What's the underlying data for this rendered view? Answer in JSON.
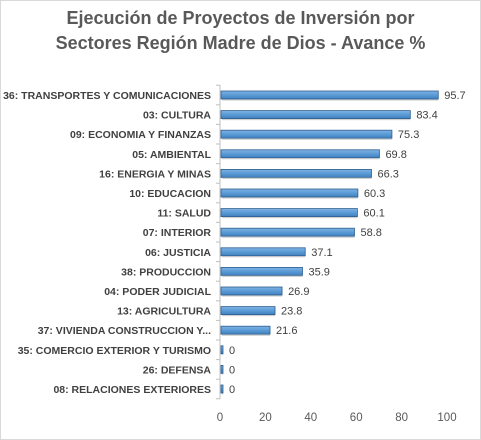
{
  "chart_data": {
    "type": "bar",
    "orientation": "horizontal",
    "title_lines": [
      "Ejecución de Proyectos de Inversión por",
      "Sectores Región Madre de Dios - Avance %"
    ],
    "categories": [
      "36: TRANSPORTES Y COMUNICACIONES",
      "03: CULTURA",
      "09: ECONOMIA Y FINANZAS",
      "05: AMBIENTAL",
      "16: ENERGIA Y MINAS",
      "10: EDUCACION",
      "11: SALUD",
      "07: INTERIOR",
      "06: JUSTICIA",
      "38: PRODUCCION",
      "04: PODER JUDICIAL",
      "13: AGRICULTURA",
      "37: VIVIENDA CONSTRUCCION Y...",
      "35: COMERCIO EXTERIOR Y TURISMO",
      "26: DEFENSA",
      "08: RELACIONES EXTERIORES"
    ],
    "values": [
      95.7,
      83.4,
      75.3,
      69.8,
      66.3,
      60.3,
      60.1,
      58.8,
      37.1,
      35.9,
      26.9,
      23.8,
      21.6,
      0,
      0,
      0
    ],
    "value_labels": [
      "95.7",
      "83.4",
      "75.3",
      "69.8",
      "66.3",
      "60.3",
      "60.1",
      "58.8",
      "37.1",
      "35.9",
      "26.9",
      "23.8",
      "21.6",
      "0",
      "0",
      "0"
    ],
    "xlim": [
      0,
      100
    ],
    "xticks": [
      0,
      20,
      40,
      60,
      80,
      100
    ],
    "xtick_labels": [
      "0",
      "20",
      "40",
      "60",
      "80",
      "100"
    ],
    "grid": false,
    "legend": "none",
    "bar_color": "#5b9bd5",
    "bar_edge_color": "#2e5f8f"
  }
}
